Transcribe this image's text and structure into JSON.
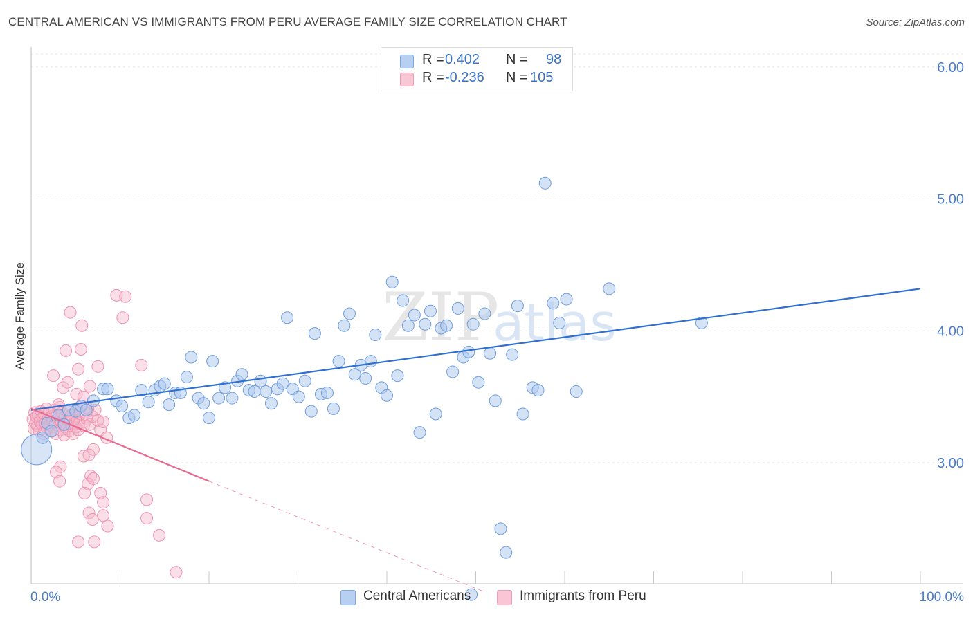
{
  "header": {
    "title": "CENTRAL AMERICAN VS IMMIGRANTS FROM PERU AVERAGE FAMILY SIZE CORRELATION CHART",
    "source": "Source: ZipAtlas.com"
  },
  "watermark": {
    "big": "ZIP",
    "small": "atlas"
  },
  "legend": {
    "rows": [
      {
        "r_label": "R =",
        "r_value": "0.402",
        "n_label": "N =",
        "n_value": "98"
      },
      {
        "r_label": "R =",
        "r_value": "-0.236",
        "n_label": "N =",
        "n_value": "105"
      }
    ]
  },
  "bottom_legend": [
    "Central Americans",
    "Immigrants from Peru"
  ],
  "colors": {
    "blue_fill": "#a9c6ee",
    "blue_stroke": "#6f9ede",
    "blue_line": "#2f6fd1",
    "pink_fill": "#f5b9cb",
    "pink_stroke": "#ef93ae",
    "pink_line": "#e8698f",
    "tick_label": "#4a7cc9",
    "grid": "#e3e3e3"
  },
  "chart_data": {
    "type": "scatter",
    "title": "CENTRAL AMERICAN VS IMMIGRANTS FROM PERU AVERAGE FAMILY SIZE CORRELATION CHART",
    "xlabel": "",
    "ylabel": "Average Family Size",
    "xlim": [
      0,
      100
    ],
    "ylim": [
      2.0,
      6.15
    ],
    "x_tick_labels": [
      "0.0%",
      "100.0%"
    ],
    "y_ticks": [
      3.0,
      4.0,
      5.0,
      6.0
    ],
    "y_tick_labels": [
      "3.00",
      "4.00",
      "5.00",
      "6.00"
    ],
    "series": [
      {
        "name": "Central Americans",
        "R": 0.402,
        "N": 98,
        "trend": {
          "x0": 0,
          "y0": 3.4,
          "x1": 100,
          "y1": 4.32
        },
        "points": [
          [
            0.6,
            3.1
          ],
          [
            1.3,
            3.19
          ],
          [
            1.8,
            3.3
          ],
          [
            2.3,
            3.24
          ],
          [
            3.1,
            3.36
          ],
          [
            3.7,
            3.29
          ],
          [
            4.2,
            3.4
          ],
          [
            5.0,
            3.39
          ],
          [
            5.6,
            3.43
          ],
          [
            6.2,
            3.4
          ],
          [
            7.0,
            3.47
          ],
          [
            8.1,
            3.56
          ],
          [
            8.6,
            3.56
          ],
          [
            9.6,
            3.47
          ],
          [
            10.2,
            3.43
          ],
          [
            11.0,
            3.34
          ],
          [
            11.6,
            3.36
          ],
          [
            12.4,
            3.55
          ],
          [
            13.2,
            3.46
          ],
          [
            13.9,
            3.55
          ],
          [
            14.5,
            3.58
          ],
          [
            15.0,
            3.6
          ],
          [
            15.5,
            3.44
          ],
          [
            16.2,
            3.53
          ],
          [
            16.8,
            3.53
          ],
          [
            17.5,
            3.65
          ],
          [
            18.0,
            3.8
          ],
          [
            18.8,
            3.49
          ],
          [
            19.4,
            3.45
          ],
          [
            20.0,
            3.34
          ],
          [
            20.4,
            3.77
          ],
          [
            21.1,
            3.49
          ],
          [
            21.8,
            3.57
          ],
          [
            22.6,
            3.49
          ],
          [
            23.2,
            3.62
          ],
          [
            23.7,
            3.67
          ],
          [
            24.5,
            3.55
          ],
          [
            25.1,
            3.54
          ],
          [
            25.8,
            3.62
          ],
          [
            26.4,
            3.54
          ],
          [
            27.0,
            3.45
          ],
          [
            27.7,
            3.56
          ],
          [
            28.3,
            3.6
          ],
          [
            28.8,
            4.1
          ],
          [
            29.4,
            3.56
          ],
          [
            30.1,
            3.5
          ],
          [
            30.8,
            3.62
          ],
          [
            31.5,
            3.39
          ],
          [
            31.9,
            3.98
          ],
          [
            32.6,
            3.52
          ],
          [
            33.3,
            3.53
          ],
          [
            34.0,
            3.41
          ],
          [
            34.6,
            3.77
          ],
          [
            35.2,
            4.04
          ],
          [
            35.8,
            4.13
          ],
          [
            36.4,
            3.67
          ],
          [
            37.1,
            3.74
          ],
          [
            37.6,
            3.64
          ],
          [
            38.2,
            3.77
          ],
          [
            38.7,
            3.97
          ],
          [
            39.4,
            3.57
          ],
          [
            40.0,
            3.51
          ],
          [
            40.6,
            4.37
          ],
          [
            41.2,
            3.66
          ],
          [
            41.8,
            4.23
          ],
          [
            42.4,
            4.04
          ],
          [
            43.1,
            4.12
          ],
          [
            43.7,
            3.23
          ],
          [
            44.3,
            4.05
          ],
          [
            44.9,
            4.15
          ],
          [
            45.5,
            3.37
          ],
          [
            46.1,
            4.02
          ],
          [
            46.7,
            4.04
          ],
          [
            47.4,
            3.69
          ],
          [
            48.0,
            4.17
          ],
          [
            48.6,
            3.8
          ],
          [
            49.2,
            3.84
          ],
          [
            49.7,
            4.05
          ],
          [
            50.3,
            3.61
          ],
          [
            51.0,
            4.13
          ],
          [
            51.6,
            3.83
          ],
          [
            52.2,
            3.47
          ],
          [
            52.8,
            2.5
          ],
          [
            53.4,
            2.32
          ],
          [
            54.1,
            3.82
          ],
          [
            54.7,
            4.19
          ],
          [
            55.3,
            3.37
          ],
          [
            56.4,
            3.57
          ],
          [
            57.8,
            5.12
          ],
          [
            57.0,
            3.55
          ],
          [
            58.7,
            4.21
          ],
          [
            59.4,
            4.06
          ],
          [
            60.2,
            4.24
          ],
          [
            61.3,
            3.54
          ],
          [
            65.0,
            4.32
          ],
          [
            75.4,
            4.06
          ],
          [
            49.5,
            2.0
          ]
        ]
      },
      {
        "name": "Immigrants from Peru",
        "R": -0.236,
        "N": 105,
        "trend": {
          "x0": 0,
          "y0": 3.41,
          "x1": 20,
          "y1": 2.86,
          "dashed_to_x": 51,
          "dashed_to_y": 2.02
        },
        "points": [
          [
            0.2,
            3.33
          ],
          [
            0.3,
            3.26
          ],
          [
            0.4,
            3.38
          ],
          [
            0.5,
            3.3
          ],
          [
            0.6,
            3.35
          ],
          [
            0.7,
            3.28
          ],
          [
            0.8,
            3.36
          ],
          [
            0.9,
            3.24
          ],
          [
            1.0,
            3.31
          ],
          [
            1.1,
            3.39
          ],
          [
            1.2,
            3.29
          ],
          [
            1.3,
            3.34
          ],
          [
            1.4,
            3.22
          ],
          [
            1.5,
            3.37
          ],
          [
            1.6,
            3.3
          ],
          [
            1.7,
            3.41
          ],
          [
            1.8,
            3.26
          ],
          [
            1.9,
            3.33
          ],
          [
            2.0,
            3.38
          ],
          [
            2.1,
            3.29
          ],
          [
            2.2,
            3.24
          ],
          [
            2.3,
            3.35
          ],
          [
            2.4,
            3.31
          ],
          [
            2.5,
            3.27
          ],
          [
            2.6,
            3.4
          ],
          [
            2.7,
            3.3
          ],
          [
            2.8,
            3.22
          ],
          [
            2.9,
            3.36
          ],
          [
            3.0,
            3.33
          ],
          [
            3.1,
            3.28
          ],
          [
            3.2,
            3.42
          ],
          [
            3.3,
            3.25
          ],
          [
            3.4,
            3.31
          ],
          [
            3.5,
            3.38
          ],
          [
            3.6,
            3.29
          ],
          [
            3.7,
            3.21
          ],
          [
            3.8,
            3.35
          ],
          [
            3.9,
            3.3
          ],
          [
            4.0,
            3.26
          ],
          [
            4.1,
            3.39
          ],
          [
            4.2,
            3.33
          ],
          [
            4.3,
            3.24
          ],
          [
            4.4,
            3.31
          ],
          [
            4.5,
            3.36
          ],
          [
            4.6,
            3.28
          ],
          [
            4.7,
            3.22
          ],
          [
            4.8,
            3.3
          ],
          [
            4.9,
            3.35
          ],
          [
            5.0,
            3.27
          ],
          [
            5.1,
            3.4
          ],
          [
            5.2,
            3.32
          ],
          [
            5.3,
            3.25
          ],
          [
            5.4,
            3.3
          ],
          [
            5.5,
            3.37
          ],
          [
            5.7,
            3.43
          ],
          [
            5.9,
            3.28
          ],
          [
            6.1,
            3.38
          ],
          [
            6.3,
            3.33
          ],
          [
            6.6,
            3.29
          ],
          [
            6.9,
            3.35
          ],
          [
            7.2,
            3.4
          ],
          [
            7.5,
            3.32
          ],
          [
            7.8,
            3.25
          ],
          [
            8.1,
            3.31
          ],
          [
            2.5,
            3.66
          ],
          [
            3.1,
            3.44
          ],
          [
            3.6,
            3.57
          ],
          [
            3.9,
            3.85
          ],
          [
            4.1,
            3.61
          ],
          [
            4.4,
            4.14
          ],
          [
            5.1,
            3.52
          ],
          [
            5.3,
            3.71
          ],
          [
            5.6,
            3.86
          ],
          [
            5.7,
            4.04
          ],
          [
            5.9,
            3.5
          ],
          [
            6.4,
            3.41
          ],
          [
            6.6,
            3.58
          ],
          [
            7.0,
            3.1
          ],
          [
            7.5,
            3.73
          ],
          [
            8.5,
            3.19
          ],
          [
            9.6,
            4.27
          ],
          [
            10.3,
            4.1
          ],
          [
            10.6,
            4.26
          ],
          [
            12.4,
            3.74
          ],
          [
            3.3,
            2.97
          ],
          [
            2.8,
            2.93
          ],
          [
            3.2,
            2.86
          ],
          [
            5.9,
            3.05
          ],
          [
            6.5,
            3.06
          ],
          [
            6.7,
            2.9
          ],
          [
            6.4,
            2.84
          ],
          [
            6.0,
            2.77
          ],
          [
            7.0,
            2.88
          ],
          [
            7.8,
            2.77
          ],
          [
            8.1,
            2.7
          ],
          [
            6.5,
            2.62
          ],
          [
            6.9,
            2.57
          ],
          [
            8.1,
            2.6
          ],
          [
            8.6,
            2.52
          ],
          [
            5.3,
            2.4
          ],
          [
            7.1,
            2.4
          ],
          [
            13.0,
            2.72
          ],
          [
            13.0,
            2.58
          ],
          [
            14.4,
            2.45
          ],
          [
            16.3,
            2.17
          ]
        ]
      }
    ]
  }
}
